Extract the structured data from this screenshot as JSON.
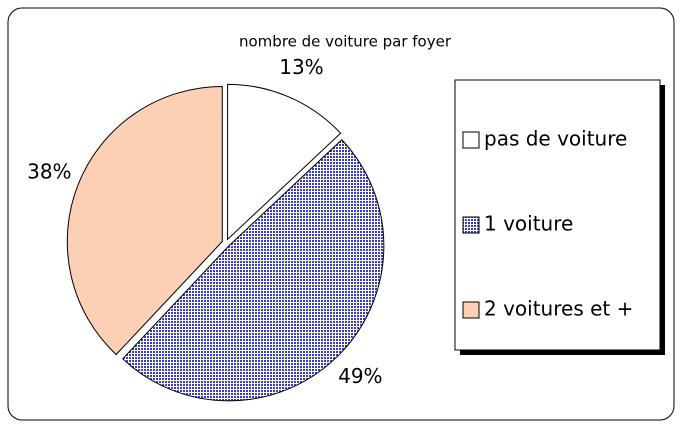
{
  "chart_data": {
    "type": "pie",
    "title": "nombre de voiture par foyer",
    "categories": [
      "pas de voiture",
      "1 voiture",
      "2 voitures et +"
    ],
    "values": [
      13,
      49,
      38
    ],
    "value_labels": [
      "13%",
      "49%",
      "38%"
    ],
    "colors": [
      "#ffffff",
      "#3a3ac8",
      "#fbd0b4"
    ],
    "legend": "right"
  }
}
